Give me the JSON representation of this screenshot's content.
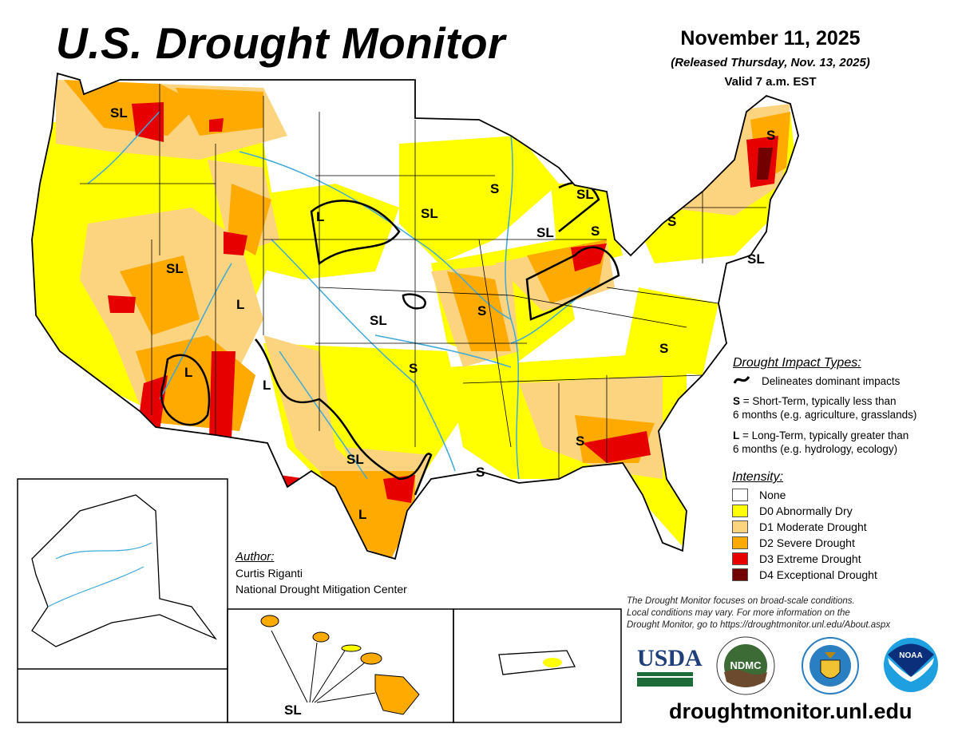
{
  "header": {
    "title": "U.S. Drought Monitor",
    "date": "November 11, 2025",
    "released": "(Released Thursday, Nov. 13, 2025)",
    "valid": "Valid 7 a.m. EST"
  },
  "impact_types": {
    "heading": "Drought Impact Types:",
    "delineates": "Delineates dominant impacts",
    "short_key": "S",
    "short_text": "= Short-Term, typically less than",
    "short_text2": "6 months (e.g. agriculture, grasslands)",
    "long_key": "L",
    "long_text": "= Long-Term, typically greater than",
    "long_text2": "6 months (e.g. hydrology, ecology)"
  },
  "intensity": {
    "heading": "Intensity:",
    "items": [
      {
        "label": "None",
        "color": "#FFFFFF"
      },
      {
        "label": "D0 Abnormally Dry",
        "color": "#FFFF00"
      },
      {
        "label": "D1 Moderate Drought",
        "color": "#FCD37F"
      },
      {
        "label": "D2 Severe Drought",
        "color": "#FFAA00"
      },
      {
        "label": "D3 Extreme Drought",
        "color": "#E60000"
      },
      {
        "label": "D4 Exceptional Drought",
        "color": "#730000"
      }
    ]
  },
  "author": {
    "heading": "Author:",
    "name": "Curtis Riganti",
    "org": "National Drought Mitigation Center"
  },
  "note": [
    "The Drought Monitor focuses on broad-scale conditions.",
    "Local conditions may vary. For more information on the",
    "Drought Monitor, go to https://droughtmonitor.unl.edu/About.aspx"
  ],
  "logos": {
    "usda": "USDA",
    "ndmc": "NDMC",
    "noaa": "NOAA",
    "commerce": "Department of Commerce"
  },
  "url": "droughtmonitor.unl.edu",
  "map": {
    "river_color": "#3FA9D8",
    "labels": [
      "SL",
      "L",
      "SL",
      "S",
      "SL",
      "S",
      "SL",
      "S",
      "S",
      "SL",
      "SL",
      "L",
      "SL",
      "S",
      "L",
      "S",
      "L",
      "S",
      "SL",
      "S",
      "S",
      "L",
      "SL"
    ]
  }
}
